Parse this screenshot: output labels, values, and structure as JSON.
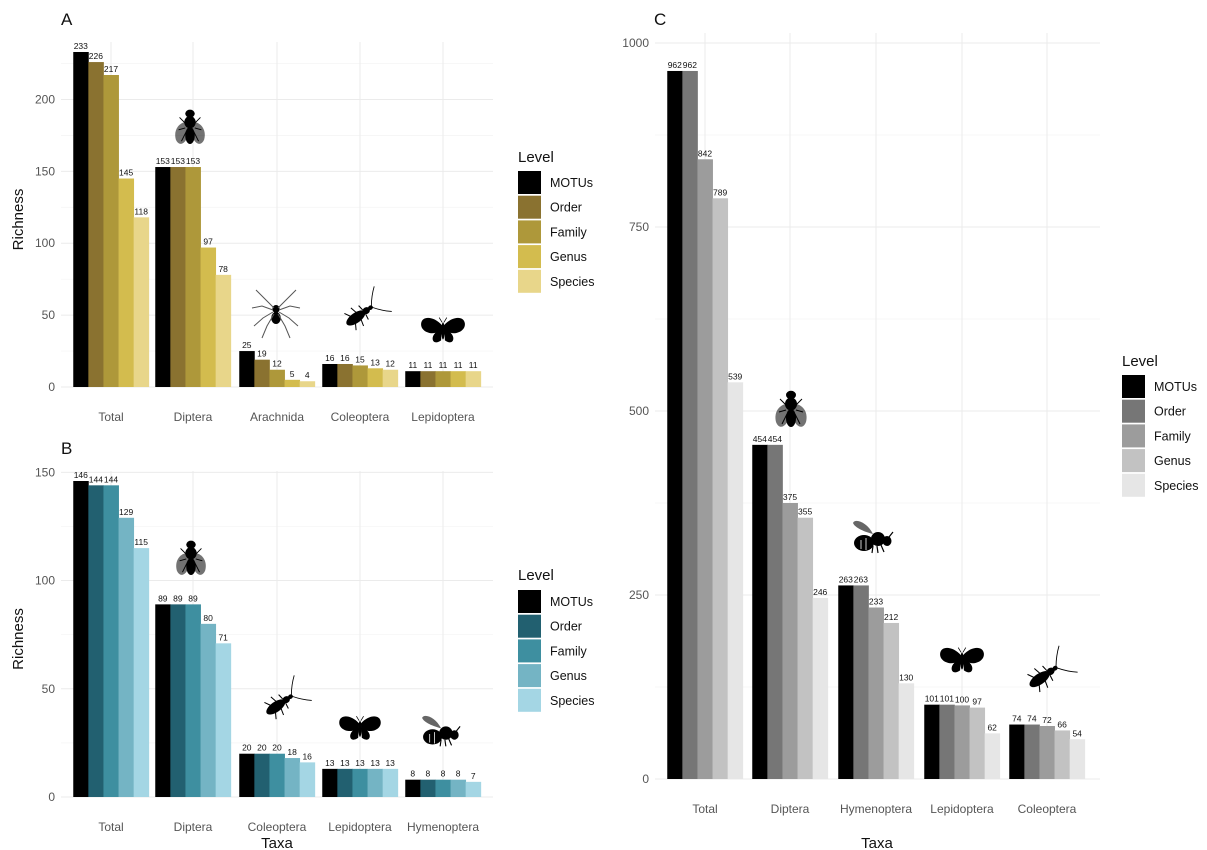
{
  "chart_data": [
    {
      "panel": "A",
      "type": "bar",
      "categories": [
        "Total",
        "Diptera",
        "Arachnida",
        "Coleoptera",
        "Lepidoptera"
      ],
      "series": [
        {
          "name": "MOTUs",
          "color": "#000000",
          "values": [
            233,
            153,
            25,
            16,
            11
          ]
        },
        {
          "name": "Order",
          "color": "#8a7230",
          "values": [
            226,
            153,
            19,
            16,
            11
          ]
        },
        {
          "name": "Family",
          "color": "#ae983a",
          "values": [
            217,
            153,
            12,
            15,
            11
          ]
        },
        {
          "name": "Genus",
          "color": "#d3bc4e",
          "values": [
            145,
            97,
            5,
            13,
            11
          ]
        },
        {
          "name": "Species",
          "color": "#e8d68a",
          "values": [
            118,
            78,
            4,
            12,
            11
          ]
        }
      ],
      "icons": [
        "",
        "fly-icon",
        "spider-icon",
        "beetle-icon",
        "moth-icon"
      ],
      "ylabel": "Richness",
      "xlabel": "",
      "ylim": [
        0,
        233
      ],
      "yticks": [
        0,
        50,
        100,
        150,
        200
      ],
      "legend_title": "Level",
      "legend_position": "right"
    },
    {
      "panel": "B",
      "type": "bar",
      "categories": [
        "Total",
        "Diptera",
        "Coleoptera",
        "Lepidoptera",
        "Hymenoptera"
      ],
      "series": [
        {
          "name": "MOTUs",
          "color": "#000000",
          "values": [
            146,
            89,
            20,
            13,
            8
          ]
        },
        {
          "name": "Order",
          "color": "#226070",
          "values": [
            144,
            89,
            20,
            13,
            8
          ]
        },
        {
          "name": "Family",
          "color": "#3e8fa0",
          "values": [
            144,
            89,
            20,
            13,
            8
          ]
        },
        {
          "name": "Genus",
          "color": "#74b4c4",
          "values": [
            129,
            80,
            18,
            13,
            8
          ]
        },
        {
          "name": "Species",
          "color": "#a4d6e4",
          "values": [
            115,
            71,
            16,
            13,
            7
          ]
        }
      ],
      "icons": [
        "",
        "fly-icon",
        "beetle-icon",
        "moth-icon",
        "bee-icon"
      ],
      "ylabel": "Richness",
      "xlabel": "Taxa",
      "ylim": [
        0,
        146
      ],
      "yticks": [
        0,
        50,
        100,
        150
      ],
      "legend_title": "Level",
      "legend_position": "right"
    },
    {
      "panel": "C",
      "type": "bar",
      "categories": [
        "Total",
        "Diptera",
        "Hymenoptera",
        "Lepidoptera",
        "Coleoptera"
      ],
      "series": [
        {
          "name": "MOTUs",
          "color": "#000000",
          "values": [
            962,
            454,
            263,
            101,
            74
          ]
        },
        {
          "name": "Order",
          "color": "#767676",
          "values": [
            962,
            454,
            263,
            101,
            74
          ]
        },
        {
          "name": "Family",
          "color": "#9c9c9c",
          "values": [
            842,
            375,
            233,
            100,
            72
          ]
        },
        {
          "name": "Genus",
          "color": "#c2c2c2",
          "values": [
            789,
            355,
            212,
            97,
            66
          ]
        },
        {
          "name": "Species",
          "color": "#e6e6e6",
          "values": [
            539,
            246,
            130,
            62,
            54
          ]
        }
      ],
      "icons": [
        "",
        "fly-icon",
        "bee-icon",
        "moth-icon",
        "beetle-icon"
      ],
      "ylabel": "",
      "xlabel": "Taxa",
      "ylim": [
        0,
        1000
      ],
      "yticks": [
        0,
        250,
        500,
        750,
        1000
      ],
      "legend_title": "Level",
      "legend_position": "right"
    }
  ]
}
